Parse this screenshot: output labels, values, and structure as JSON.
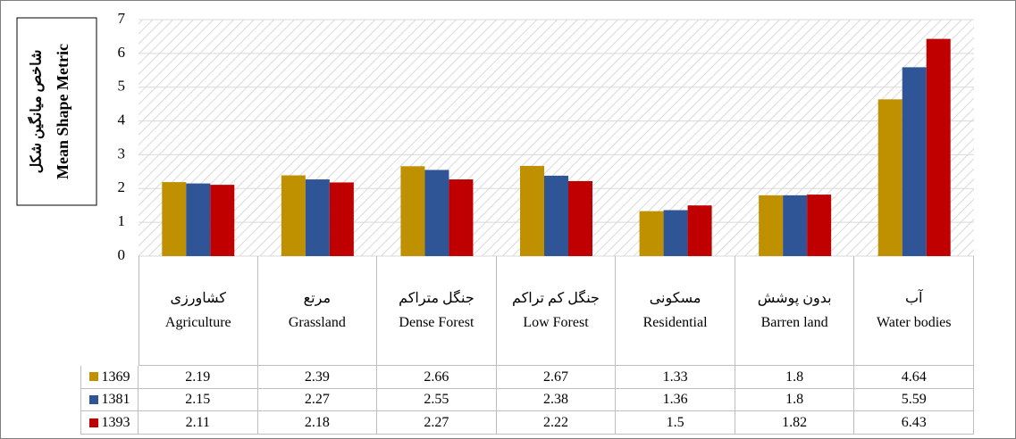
{
  "chart_data": {
    "type": "bar",
    "y_axis_label_fa": "شاخص میانگین شکل",
    "y_axis_label_en": "Mean Shape Metric",
    "categories_fa": [
      "کشاورزی",
      "مرتع",
      "جنگل متراکم",
      "جنگل کم تراکم",
      "مسکونی",
      "بدون پوشش",
      "آب"
    ],
    "categories": [
      "Agriculture",
      "Grassland",
      "Dense Forest",
      "Low Forest",
      "Residential",
      "Barren land",
      "Water bodies"
    ],
    "series": [
      {
        "name": "1369",
        "color": "#bf9000",
        "values": [
          2.19,
          2.39,
          2.66,
          2.67,
          1.33,
          1.8,
          4.64
        ]
      },
      {
        "name": "1381",
        "color": "#2f5597",
        "values": [
          2.15,
          2.27,
          2.55,
          2.38,
          1.36,
          1.8,
          5.59
        ]
      },
      {
        "name": "1393",
        "color": "#c00000",
        "values": [
          2.11,
          2.18,
          2.27,
          2.22,
          1.5,
          1.82,
          6.43
        ]
      }
    ],
    "ylim": [
      0,
      7
    ],
    "yticks": [
      0,
      1,
      2,
      3,
      4,
      5,
      6,
      7
    ],
    "grid": true
  }
}
